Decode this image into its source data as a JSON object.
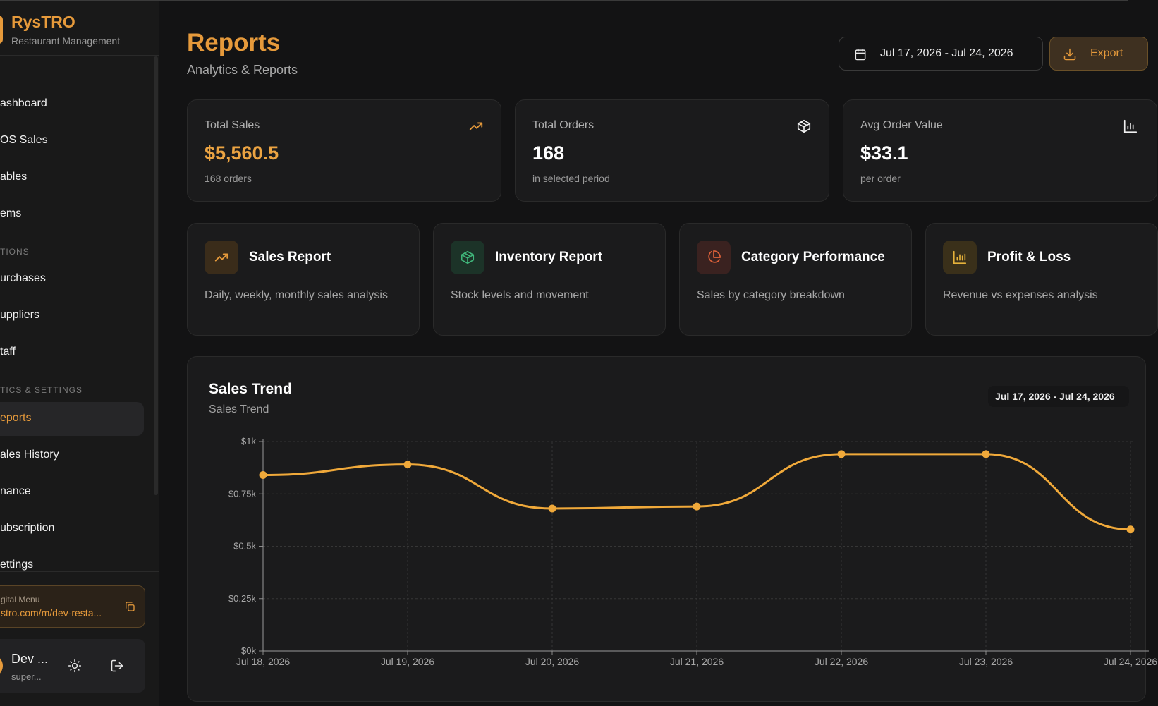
{
  "sidebar": {
    "brand": "RysTRO",
    "brand_sub": "Restaurant Management",
    "items": [
      {
        "label": "ashboard"
      },
      {
        "label": "OS Sales"
      },
      {
        "label": "ables"
      },
      {
        "label": "ems"
      },
      {
        "label": "urchases"
      },
      {
        "label": "uppliers"
      },
      {
        "label": "taff"
      },
      {
        "label": "eports"
      },
      {
        "label": "ales History"
      },
      {
        "label": "nance"
      },
      {
        "label": "ubscription"
      },
      {
        "label": "ettings"
      }
    ],
    "sections": [
      "TIONS",
      "TICS & SETTINGS"
    ],
    "digital_menu": {
      "title": "gital Menu",
      "url": "stro.com/m/dev-resta..."
    },
    "user": {
      "name": "Dev ...",
      "role": "super..."
    }
  },
  "header": {
    "title": "Reports",
    "subtitle": "Analytics & Reports",
    "date_range": "Jul 17, 2026 - Jul 24, 2026",
    "export_label": "Export"
  },
  "stats": [
    {
      "label": "Total Sales",
      "value": "$5,560.5",
      "note": "168 orders",
      "icon": "trending-up-icon"
    },
    {
      "label": "Total Orders",
      "value": "168",
      "note": "in selected period",
      "icon": "package-icon"
    },
    {
      "label": "Avg Order Value",
      "value": "$33.1",
      "note": "per order",
      "icon": "bar-chart-icon"
    }
  ],
  "reports": [
    {
      "title": "Sales Report",
      "desc": "Daily, weekly, monthly sales analysis",
      "icon": "trending-up-icon",
      "color": "#e69a3b"
    },
    {
      "title": "Inventory Report",
      "desc": "Stock levels and movement",
      "icon": "package-icon",
      "color": "#3fb57a"
    },
    {
      "title": "Category Performance",
      "desc": "Sales by category breakdown",
      "icon": "pie-chart-icon",
      "color": "#e0623a"
    },
    {
      "title": "Profit & Loss",
      "desc": "Revenue vs expenses analysis",
      "icon": "bar-chart-icon",
      "color": "#e6b23b"
    }
  ],
  "chart": {
    "title": "Sales Trend",
    "subtitle": "Sales Trend",
    "badge": "Jul 17, 2026 - Jul 24, 2026"
  },
  "chart_data": {
    "type": "line",
    "x": [
      "Jul 18, 2026",
      "Jul 19, 2026",
      "Jul 20, 2026",
      "Jul 21, 2026",
      "Jul 22, 2026",
      "Jul 23, 2026",
      "Jul 24, 2026"
    ],
    "series": [
      {
        "values": [
          840,
          890,
          680,
          690,
          940,
          940,
          580
        ]
      }
    ],
    "yticks": [
      "$0k",
      "$0.25k",
      "$0.5k",
      "$0.75k",
      "$1k"
    ],
    "ylim": [
      0,
      1000
    ],
    "grid": true,
    "color": "#f0a93a"
  },
  "colors": {
    "accent": "#e69a3b",
    "background": "#131314",
    "card": "#1b1b1c"
  }
}
